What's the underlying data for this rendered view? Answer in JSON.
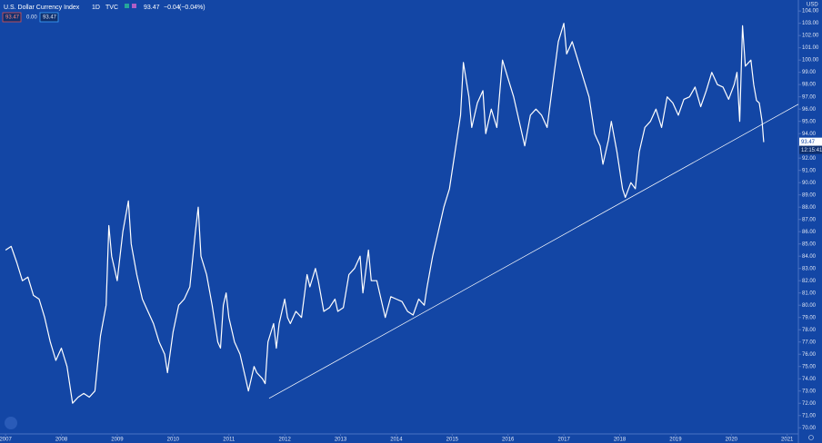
{
  "chart_data": {
    "type": "line",
    "title": "U.S. Dollar Currency Index",
    "interval": "1D",
    "source": "TVC",
    "header": {
      "last": "93.47",
      "change": "−0.04",
      "change_pct": "(−0.04%)",
      "boxes": [
        "93.47",
        "0.00",
        "93.47"
      ]
    },
    "currency": "USD",
    "price_tag": "93.47",
    "countdown": "12:15:41",
    "color": "#ffffff",
    "background": "#1346a5",
    "x": [
      2007.0,
      2007.1,
      2007.2,
      2007.3,
      2007.4,
      2007.5,
      2007.6,
      2007.7,
      2007.8,
      2007.9,
      2008.0,
      2008.1,
      2008.2,
      2008.3,
      2008.4,
      2008.5,
      2008.6,
      2008.7,
      2008.8,
      2008.85,
      2008.9,
      2009.0,
      2009.1,
      2009.2,
      2009.25,
      2009.35,
      2009.45,
      2009.55,
      2009.65,
      2009.75,
      2009.85,
      2009.9,
      2010.0,
      2010.1,
      2010.2,
      2010.3,
      2010.4,
      2010.45,
      2010.5,
      2010.6,
      2010.7,
      2010.8,
      2010.85,
      2010.9,
      2010.95,
      2011.0,
      2011.1,
      2011.2,
      2011.3,
      2011.35,
      2011.45,
      2011.5,
      2011.6,
      2011.65,
      2011.7,
      2011.8,
      2011.85,
      2011.9,
      2012.0,
      2012.05,
      2012.1,
      2012.2,
      2012.3,
      2012.4,
      2012.45,
      2012.55,
      2012.6,
      2012.7,
      2012.8,
      2012.9,
      2012.95,
      2013.05,
      2013.15,
      2013.25,
      2013.35,
      2013.4,
      2013.5,
      2013.55,
      2013.65,
      2013.75,
      2013.8,
      2013.9,
      2014.0,
      2014.1,
      2014.2,
      2014.3,
      2014.4,
      2014.5,
      2014.55,
      2014.65,
      2014.75,
      2014.85,
      2014.95,
      2015.05,
      2015.15,
      2015.2,
      2015.3,
      2015.35,
      2015.45,
      2015.55,
      2015.6,
      2015.7,
      2015.8,
      2015.9,
      2016.0,
      2016.1,
      2016.2,
      2016.3,
      2016.4,
      2016.5,
      2016.6,
      2016.7,
      2016.8,
      2016.9,
      2017.0,
      2017.05,
      2017.15,
      2017.25,
      2017.35,
      2017.45,
      2017.55,
      2017.65,
      2017.7,
      2017.8,
      2017.85,
      2017.95,
      2018.05,
      2018.1,
      2018.2,
      2018.28,
      2018.35,
      2018.45,
      2018.55,
      2018.65,
      2018.75,
      2018.85,
      2018.95,
      2019.05,
      2019.15,
      2019.25,
      2019.35,
      2019.45,
      2019.55,
      2019.65,
      2019.75,
      2019.85,
      2019.95,
      2020.05,
      2020.1,
      2020.15,
      2020.2,
      2020.25,
      2020.35,
      2020.4,
      2020.45,
      2020.5,
      2020.55,
      2020.58
    ],
    "values": [
      84.5,
      84.8,
      83.5,
      82.0,
      82.3,
      80.8,
      80.5,
      79.0,
      77.0,
      75.5,
      76.5,
      75.0,
      72.0,
      72.5,
      72.8,
      72.5,
      73.0,
      77.5,
      80.0,
      86.5,
      84.0,
      82.0,
      86.0,
      88.5,
      85.0,
      82.5,
      80.5,
      79.5,
      78.5,
      77.0,
      76.0,
      74.5,
      77.8,
      80.0,
      80.5,
      81.5,
      86.0,
      88.0,
      84.0,
      82.5,
      80.0,
      77.0,
      76.5,
      80.0,
      81.0,
      79.0,
      77.0,
      76.0,
      74.0,
      73.0,
      75.0,
      74.5,
      74.0,
      73.6,
      77.0,
      78.5,
      76.5,
      78.5,
      80.5,
      79.0,
      78.5,
      79.5,
      79.0,
      82.5,
      81.5,
      83.0,
      82.0,
      79.5,
      79.8,
      80.5,
      79.5,
      79.8,
      82.5,
      83.0,
      84.0,
      81.0,
      84.5,
      82.0,
      82.0,
      80.0,
      79.0,
      80.7,
      80.5,
      80.3,
      79.5,
      79.2,
      80.5,
      80.0,
      81.5,
      84.0,
      86.0,
      88.0,
      89.5,
      92.5,
      95.5,
      99.8,
      97.0,
      94.5,
      96.5,
      97.5,
      94.0,
      96.0,
      94.5,
      100.0,
      98.5,
      97.0,
      95.0,
      93.0,
      95.5,
      96.0,
      95.5,
      94.5,
      98.0,
      101.5,
      103.0,
      100.5,
      101.5,
      100.0,
      98.5,
      97.0,
      94.0,
      93.0,
      91.5,
      93.5,
      95.0,
      92.5,
      89.5,
      88.8,
      90.0,
      89.5,
      92.5,
      94.5,
      95.0,
      96.0,
      94.5,
      97.0,
      96.5,
      95.5,
      96.8,
      97.0,
      97.8,
      96.2,
      97.5,
      99.0,
      98.0,
      97.8,
      96.8,
      98.0,
      99.0,
      95.0,
      102.8,
      99.5,
      100.0,
      98.0,
      96.7,
      96.5,
      95.0,
      93.3
    ],
    "trendline": {
      "x": [
        2011.72,
        2021.2
      ],
      "values": [
        72.4,
        96.4
      ]
    },
    "xlim": [
      2006.9,
      2021.2
    ],
    "xticks": [
      2007,
      2008,
      2009,
      2010,
      2011,
      2012,
      2013,
      2014,
      2015,
      2016,
      2017,
      2018,
      2019,
      2020,
      2021
    ],
    "ylim": [
      69.5,
      104.9
    ],
    "yticks": [
      {
        "value": 70,
        "label": "70.00"
      },
      {
        "value": 71,
        "label": "71.00"
      },
      {
        "value": 72,
        "label": "72.00"
      },
      {
        "value": 73,
        "label": "73.00"
      },
      {
        "value": 74,
        "label": "74.00"
      },
      {
        "value": 75,
        "label": "75.00"
      },
      {
        "value": 76,
        "label": "76.00"
      },
      {
        "value": 77,
        "label": "77.00"
      },
      {
        "value": 78,
        "label": "78.00"
      },
      {
        "value": 79,
        "label": "79.00"
      },
      {
        "value": 80,
        "label": "80.00"
      },
      {
        "value": 81,
        "label": "81.00"
      },
      {
        "value": 82,
        "label": "82.00"
      },
      {
        "value": 83,
        "label": "83.00"
      },
      {
        "value": 84,
        "label": "84.00"
      },
      {
        "value": 85,
        "label": "85.00"
      },
      {
        "value": 86,
        "label": "86.00"
      },
      {
        "value": 87,
        "label": "87.00"
      },
      {
        "value": 88,
        "label": "88.00"
      },
      {
        "value": 89,
        "label": "89.00"
      },
      {
        "value": 90,
        "label": "90.00"
      },
      {
        "value": 91,
        "label": "91.00"
      },
      {
        "value": 92,
        "label": "92.00"
      },
      {
        "value": 93,
        "label": "93.00"
      },
      {
        "value": 94,
        "label": "94.00"
      },
      {
        "value": 95,
        "label": "95.00"
      },
      {
        "value": 96,
        "label": "96.00"
      },
      {
        "value": 97,
        "label": "97.00"
      },
      {
        "value": 98,
        "label": "98.00"
      },
      {
        "value": 99,
        "label": "99.00"
      },
      {
        "value": 100,
        "label": "100.00"
      },
      {
        "value": 101,
        "label": "101.00"
      },
      {
        "value": 102,
        "label": "102.00"
      },
      {
        "value": 103,
        "label": "103.00"
      },
      {
        "value": 104,
        "label": "104.00"
      }
    ],
    "grid": false
  }
}
